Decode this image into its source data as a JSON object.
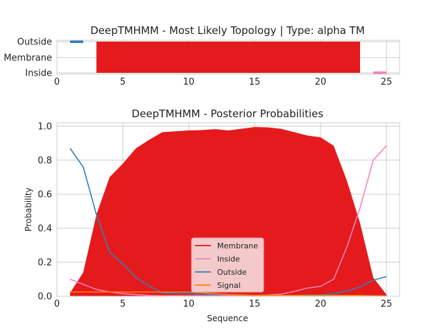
{
  "colors": {
    "membrane": "#e41a1c",
    "inside": "#f781bf",
    "outside": "#377eb8",
    "signal": "#ff7f00",
    "grid": "#cccccc",
    "legend_bg": "#f5d3d4"
  },
  "chart_data": [
    {
      "type": "topology",
      "title": "DeepTMHMM - Most Likely Topology | Type: alpha TM",
      "xlim": [
        0,
        26
      ],
      "xticks": [
        0,
        5,
        10,
        15,
        20,
        25
      ],
      "ytick_labels": [
        "Outside",
        "Membrane",
        "Inside"
      ],
      "segments": [
        {
          "region": "Outside",
          "start": 1,
          "end": 2
        },
        {
          "region": "Membrane",
          "start": 3,
          "end": 23
        },
        {
          "region": "Inside",
          "start": 24,
          "end": 25
        }
      ]
    },
    {
      "type": "area",
      "title": "DeepTMHMM - Posterior Probabilities",
      "xlabel": "Sequence",
      "ylabel": "Probability",
      "xlim": [
        0,
        26
      ],
      "ylim": [
        0,
        1.02
      ],
      "xticks": [
        0,
        5,
        10,
        15,
        20,
        25
      ],
      "yticks": [
        "0.0",
        "0.2",
        "0.4",
        "0.6",
        "0.8",
        "1.0"
      ],
      "grid": true,
      "legend_position": "bottom-center",
      "x": [
        1,
        2,
        3,
        4,
        5,
        6,
        7,
        8,
        9,
        10,
        11,
        12,
        13,
        14,
        15,
        16,
        17,
        18,
        19,
        20,
        21,
        22,
        23,
        24,
        25
      ],
      "series": [
        {
          "name": "Membrane",
          "style": "filled-area",
          "values": [
            0.02,
            0.14,
            0.48,
            0.7,
            0.78,
            0.87,
            0.92,
            0.965,
            0.97,
            0.975,
            0.977,
            0.983,
            0.975,
            0.985,
            0.995,
            0.993,
            0.985,
            0.965,
            0.945,
            0.935,
            0.885,
            0.68,
            0.43,
            0.11,
            0.01
          ]
        },
        {
          "name": "Inside",
          "style": "line",
          "values": [
            0.1,
            0.07,
            0.04,
            0.025,
            0.015,
            0.01,
            0.005,
            0.003,
            0.003,
            0.003,
            0.003,
            0.003,
            0.005,
            0.005,
            0.005,
            0.007,
            0.012,
            0.028,
            0.048,
            0.058,
            0.1,
            0.29,
            0.52,
            0.8,
            0.885
          ]
        },
        {
          "name": "Outside",
          "style": "line",
          "values": [
            0.87,
            0.76,
            0.48,
            0.26,
            0.19,
            0.11,
            0.06,
            0.02,
            0.018,
            0.015,
            0.012,
            0.01,
            0.01,
            0.008,
            0.005,
            0.002,
            0.002,
            0.005,
            0.007,
            0.008,
            0.015,
            0.03,
            0.055,
            0.095,
            0.115
          ]
        },
        {
          "name": "Signal",
          "style": "line",
          "values": [
            0.025,
            0.025,
            0.025,
            0.025,
            0.025,
            0.025,
            0.025,
            0.025,
            0.025,
            0.025,
            0.02,
            0.015,
            0.01,
            0.008,
            0.005,
            0.005,
            0.005,
            0.005,
            0.005,
            0.005,
            0.005,
            0.005,
            0.005,
            0.003,
            0.002
          ]
        }
      ]
    }
  ]
}
